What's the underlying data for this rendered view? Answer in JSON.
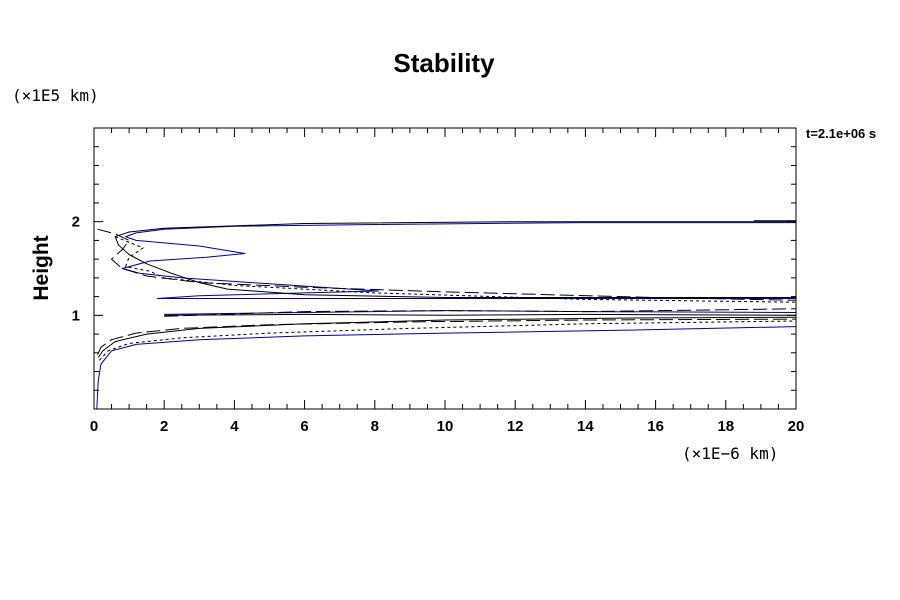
{
  "chart_data": {
    "type": "line",
    "title": "Stability",
    "ylabel": "Height",
    "xlabel": "",
    "x_unit": "(×1E−6 km)",
    "y_unit": "(×1E5 km)",
    "annotation": "t=2.1e+06 s",
    "xlim": [
      0,
      20
    ],
    "ylim": [
      0,
      3
    ],
    "x_ticks": [
      0,
      2,
      4,
      6,
      8,
      10,
      12,
      14,
      16,
      18,
      20
    ],
    "x_tick_labels": [
      "0",
      "2",
      "4",
      "6",
      "8",
      "10",
      "12",
      "14",
      "16",
      "18",
      "20"
    ],
    "y_ticks": [
      1,
      2
    ],
    "y_tick_labels": [
      "1",
      "2"
    ],
    "grid": false,
    "colors": {
      "axis": "#000000",
      "blue_contour": "#0000aa",
      "black_contour": "#000000"
    },
    "series": [
      {
        "style": "solid",
        "color": "#0000aa",
        "x": [
          20,
          14,
          8,
          4,
          2,
          1.2,
          0.9,
          1.2,
          3,
          4.3,
          3.2,
          1.6,
          0.8,
          1.3,
          2.5,
          4.5,
          8.1,
          6,
          3,
          1.8,
          4,
          8,
          14,
          20
        ],
        "y": [
          1.99,
          1.99,
          1.97,
          1.95,
          1.92,
          1.88,
          1.84,
          1.8,
          1.74,
          1.66,
          1.62,
          1.58,
          1.5,
          1.45,
          1.4,
          1.35,
          1.26,
          1.24,
          1.21,
          1.18,
          1.18,
          1.18,
          1.18,
          1.18
        ]
      },
      {
        "style": "solid",
        "color": "#000000",
        "x": [
          20,
          12,
          6,
          2,
          1,
          0.6,
          0.7,
          1,
          1.5,
          2.2,
          3,
          3.8,
          6,
          10,
          20
        ],
        "y": [
          2.0,
          2.0,
          1.98,
          1.93,
          1.89,
          1.84,
          1.75,
          1.65,
          1.55,
          1.45,
          1.35,
          1.28,
          1.22,
          1.19,
          1.19
        ]
      },
      {
        "style": "dashed",
        "color": "#000000",
        "x": [
          0.1,
          0.6,
          1,
          0.8,
          0.5,
          0.8,
          1.5,
          3,
          6,
          10,
          16,
          20
        ],
        "y": [
          1.92,
          1.87,
          1.8,
          1.7,
          1.6,
          1.5,
          1.42,
          1.35,
          1.3,
          1.25,
          1.19,
          1.16
        ]
      },
      {
        "style": "dotted",
        "color": "#000000",
        "x": [
          0.6,
          1.4,
          1,
          0.9,
          1.6,
          2,
          4,
          8,
          14,
          20
        ],
        "y": [
          1.84,
          1.72,
          1.62,
          1.52,
          1.47,
          1.4,
          1.32,
          1.24,
          1.17,
          1.14
        ]
      },
      {
        "style": "solid",
        "color": "#0000aa",
        "x": [
          2,
          6,
          10,
          14,
          20
        ],
        "y": [
          1.01,
          1.03,
          1.05,
          1.04,
          1.03
        ]
      },
      {
        "style": "solid",
        "color": "#000000",
        "x": [
          2,
          6,
          10,
          14,
          20
        ],
        "y": [
          1.0,
          1.01,
          1.0,
          1.01,
          1.0
        ]
      },
      {
        "style": "dashed",
        "color": "#000000",
        "x": [
          2,
          6,
          10,
          14,
          20
        ],
        "y": [
          0.99,
          1.04,
          1.05,
          1.04,
          1.07
        ]
      },
      {
        "style": "solid",
        "color": "#000000",
        "x": [
          0.12,
          0.25,
          0.6,
          1.5,
          3,
          6,
          10,
          15,
          20
        ],
        "y": [
          0.55,
          0.62,
          0.72,
          0.8,
          0.86,
          0.91,
          0.95,
          0.97,
          0.98
        ]
      },
      {
        "style": "dashed",
        "color": "#000000",
        "x": [
          0.1,
          0.2,
          0.5,
          1.2,
          2.5,
          5,
          9,
          14,
          20
        ],
        "y": [
          0.58,
          0.66,
          0.74,
          0.81,
          0.86,
          0.9,
          0.93,
          0.95,
          0.96
        ]
      },
      {
        "style": "dotted",
        "color": "#000000",
        "x": [
          0.15,
          0.4,
          1,
          2.5,
          5,
          9,
          14,
          20
        ],
        "y": [
          0.52,
          0.62,
          0.7,
          0.76,
          0.81,
          0.86,
          0.91,
          0.94
        ]
      },
      {
        "style": "solid",
        "color": "#0000aa",
        "x": [
          0.08,
          0.12,
          0.2,
          0.5,
          1.2,
          3,
          6,
          10,
          15,
          20
        ],
        "y": [
          0.0,
          0.3,
          0.48,
          0.62,
          0.69,
          0.74,
          0.78,
          0.81,
          0.84,
          0.88
        ]
      },
      {
        "style": "solid",
        "color": "#000000",
        "x": [
          18.8,
          20
        ],
        "y": [
          2.01,
          2.01
        ]
      },
      {
        "style": "solid",
        "color": "#0000aa",
        "x": [
          18.8,
          20
        ],
        "y": [
          0.0,
          0.0
        ]
      }
    ]
  }
}
